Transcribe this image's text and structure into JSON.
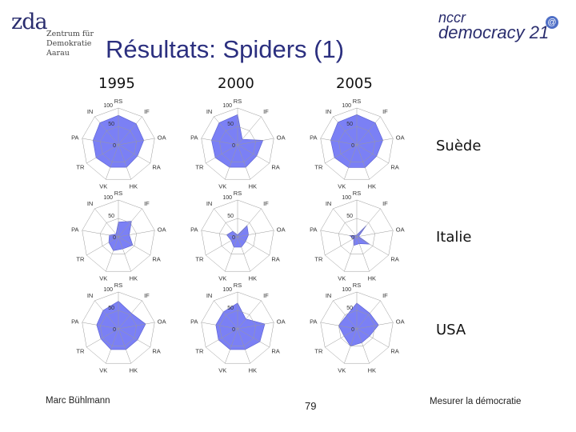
{
  "header": {
    "zda_mark": "zda",
    "zda_lines": [
      "Zentrum für",
      "Demokratie",
      "Aarau"
    ],
    "nccr_top": "nccr",
    "nccr_bottom": "democracy 21",
    "nccr_at": "@",
    "title": "Résultats: Spiders (1)"
  },
  "footer": {
    "author": "Marc Bühlmann",
    "page": "79",
    "subject": "Mesurer la démocratie"
  },
  "colors": {
    "fill": "#7b80f5",
    "title": "#2b2f7f",
    "grid": "#9a9a9a"
  },
  "chart_data": {
    "type": "radar",
    "axes": [
      "RS",
      "IF",
      "OA",
      "RA",
      "HK",
      "VK",
      "TR",
      "PA",
      "IN"
    ],
    "scale_labels": [
      "0",
      "50",
      "100"
    ],
    "rmax": 100,
    "columns": [
      "1995",
      "2000",
      "2005"
    ],
    "rows": [
      "Suède",
      "Italie",
      "USA"
    ],
    "panels": [
      {
        "row": "Suède",
        "col": "1995",
        "values": [
          80,
          75,
          70,
          60,
          65,
          65,
          70,
          70,
          78
        ]
      },
      {
        "row": "Suède",
        "col": "2000",
        "values": [
          82,
          20,
          70,
          60,
          65,
          65,
          70,
          72,
          78
        ]
      },
      {
        "row": "Suède",
        "col": "2005",
        "values": [
          82,
          78,
          72,
          62,
          66,
          66,
          70,
          72,
          80
        ]
      },
      {
        "row": "Italie",
        "col": "1995",
        "values": [
          40,
          55,
          30,
          45,
          35,
          40,
          30,
          25,
          10
        ]
      },
      {
        "row": "Italie",
        "col": "2000",
        "values": [
          5,
          40,
          30,
          25,
          30,
          30,
          20,
          30,
          20
        ]
      },
      {
        "row": "Italie",
        "col": "2005",
        "values": [
          5,
          40,
          5,
          40,
          20,
          25,
          10,
          20,
          5
        ]
      },
      {
        "row": "USA",
        "col": "1995",
        "values": [
          75,
          55,
          75,
          60,
          60,
          60,
          55,
          60,
          65
        ]
      },
      {
        "row": "USA",
        "col": "2000",
        "values": [
          70,
          35,
          75,
          70,
          60,
          60,
          60,
          60,
          60
        ]
      },
      {
        "row": "USA",
        "col": "2005",
        "values": [
          70,
          55,
          60,
          40,
          40,
          50,
          40,
          50,
          45
        ]
      }
    ]
  }
}
